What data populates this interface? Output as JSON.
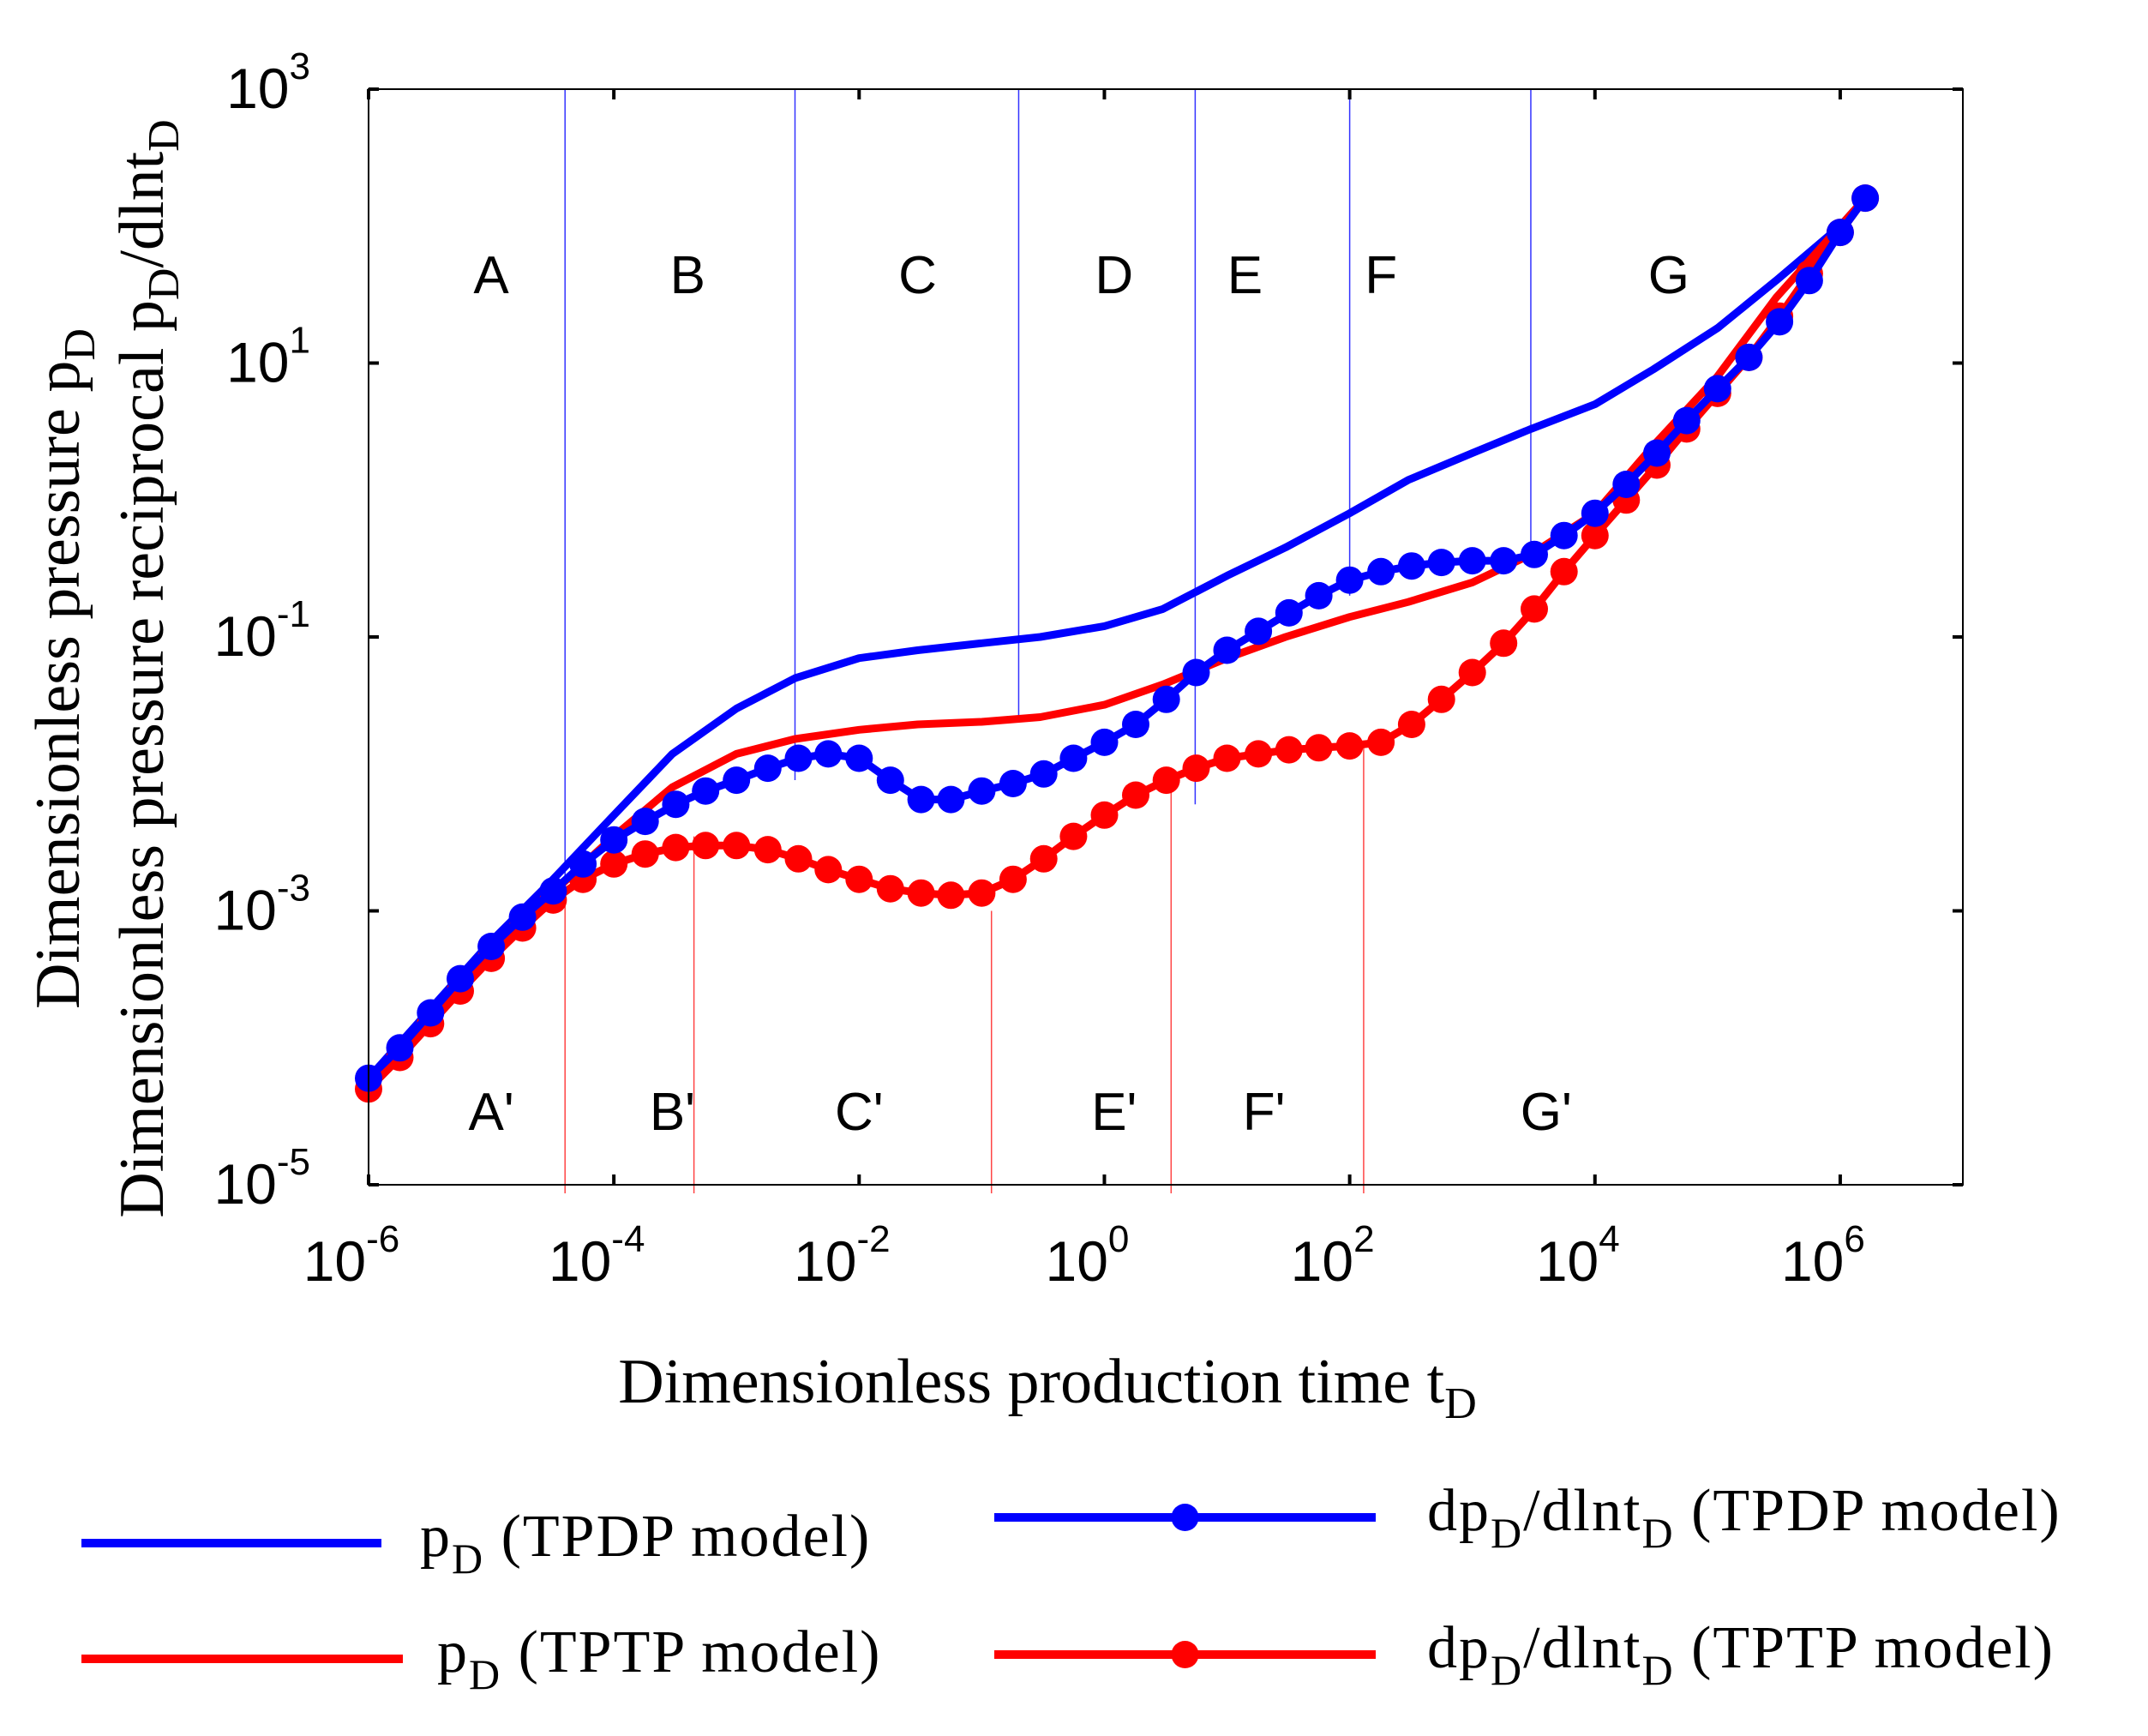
{
  "chart_data": {
    "type": "line",
    "xlabel": "Dimensionless production time t",
    "xlabel_sub": "D",
    "ylabel_line1": "Dimensionless pressure p",
    "ylabel_line1_sub": "D",
    "ylabel_line2": "Dimensionless pressure reciprocal p",
    "ylabel_line2_sub": "D",
    "ylabel_line2_mid": "/dlnt",
    "ylabel_line2_sub2": "D",
    "x_scale": "log",
    "y_scale": "log",
    "xlim": [
      1e-06,
      10000000.0
    ],
    "ylim": [
      1e-05,
      1000.0
    ],
    "x_ticks": [
      {
        "value": 1e-06,
        "base": "10",
        "exp": "-6"
      },
      {
        "value": 0.0001,
        "base": "10",
        "exp": "-4"
      },
      {
        "value": 0.01,
        "base": "10",
        "exp": "-2"
      },
      {
        "value": 1,
        "base": "10",
        "exp": "0"
      },
      {
        "value": 100.0,
        "base": "10",
        "exp": "2"
      },
      {
        "value": 10000.0,
        "base": "10",
        "exp": "4"
      },
      {
        "value": 1000000.0,
        "base": "10",
        "exp": "6"
      }
    ],
    "y_ticks": [
      {
        "value": 1e-05,
        "base": "10",
        "exp": "-5"
      },
      {
        "value": 0.001,
        "base": "10",
        "exp": "-3"
      },
      {
        "value": 0.1,
        "base": "10",
        "exp": "-1"
      },
      {
        "value": 10.0,
        "base": "10",
        "exp": "1"
      },
      {
        "value": 1000.0,
        "base": "10",
        "exp": "3"
      }
    ],
    "grid": false,
    "legend_position": "bottom",
    "top_regions": [
      {
        "label": "A",
        "x": 1e-05
      },
      {
        "label": "B",
        "x": 0.0004
      },
      {
        "label": "C",
        "x": 0.03
      },
      {
        "label": "D",
        "x": 1.2
      },
      {
        "label": "E",
        "x": 14
      },
      {
        "label": "F",
        "x": 180
      },
      {
        "label": "G",
        "x": 40000.0
      }
    ],
    "top_boundaries": [
      4e-05,
      0.003,
      0.2,
      5.5,
      100,
      3000.0
    ],
    "bottom_regions": [
      {
        "label": "A'",
        "x": 1e-05
      },
      {
        "label": "B'",
        "x": 0.0003
      },
      {
        "label": "C'",
        "x": 0.01
      },
      {
        "label": "E'",
        "x": 1.2
      },
      {
        "label": "F'",
        "x": 20
      },
      {
        "label": "G'",
        "x": 4000.0
      }
    ],
    "bottom_boundaries": [
      {
        "x": 4e-05,
        "y": 0.0013
      },
      {
        "x": 0.00045,
        "y": 0.0035
      },
      {
        "x": 0.12,
        "y": 0.001
      },
      {
        "x": 3.5,
        "y": 0.009
      },
      {
        "x": 130,
        "y": 0.017
      }
    ],
    "series": [
      {
        "name": "p",
        "name_sub": "D",
        "name_suffix": "(TPDP model)",
        "color": "#0000ff",
        "style": "line",
        "points": [
          [
            1e-06,
            6e-05
          ],
          [
            3e-06,
            0.00018
          ],
          [
            1e-05,
            0.0006
          ],
          [
            3e-05,
            0.0016
          ],
          [
            0.0001,
            0.005
          ],
          [
            0.0003,
            0.014
          ],
          [
            0.001,
            0.03
          ],
          [
            0.003,
            0.05
          ],
          [
            0.01,
            0.07
          ],
          [
            0.03,
            0.08
          ],
          [
            0.1,
            0.09
          ],
          [
            0.3,
            0.1
          ],
          [
            1,
            0.12
          ],
          [
            3,
            0.16
          ],
          [
            10,
            0.28
          ],
          [
            30,
            0.45
          ],
          [
            100,
            0.8
          ],
          [
            300,
            1.4
          ],
          [
            1000,
            2.2
          ],
          [
            3000,
            3.3
          ],
          [
            10000.0,
            5
          ],
          [
            30000.0,
            9
          ],
          [
            100000.0,
            18
          ],
          [
            300000.0,
            40
          ],
          [
            1000000.0,
            100
          ],
          [
            1600000.0,
            160
          ]
        ]
      },
      {
        "name": "p",
        "name_sub": "D",
        "name_suffix": "(TPTP model)",
        "color": "#ff0000",
        "style": "line",
        "points": [
          [
            1e-06,
            5e-05
          ],
          [
            3e-06,
            0.00015
          ],
          [
            1e-05,
            0.0005
          ],
          [
            3e-05,
            0.0013
          ],
          [
            0.0001,
            0.0035
          ],
          [
            0.0003,
            0.008
          ],
          [
            0.001,
            0.014
          ],
          [
            0.003,
            0.018
          ],
          [
            0.01,
            0.021
          ],
          [
            0.03,
            0.023
          ],
          [
            0.1,
            0.024
          ],
          [
            0.3,
            0.026
          ],
          [
            1,
            0.032
          ],
          [
            3,
            0.045
          ],
          [
            10,
            0.07
          ],
          [
            30,
            0.1
          ],
          [
            100,
            0.14
          ],
          [
            300,
            0.18
          ],
          [
            1000,
            0.25
          ],
          [
            3000,
            0.4
          ],
          [
            10000.0,
            0.8
          ],
          [
            30000.0,
            2.5
          ],
          [
            100000.0,
            8
          ],
          [
            300000.0,
            30
          ],
          [
            1000000.0,
            100
          ],
          [
            1600000.0,
            160
          ]
        ]
      },
      {
        "name": "dp",
        "name_sub": "D",
        "name_mid": "/dlnt",
        "name_sub2": "D",
        "name_suffix": "(TPDP model)",
        "color": "#0000ff",
        "style": "line-marker",
        "points": [
          [
            1e-06,
            6e-05
          ],
          [
            1.8e-06,
            0.0001
          ],
          [
            3.2e-06,
            0.00018
          ],
          [
            5.6e-06,
            0.00032
          ],
          [
            1e-05,
            0.00055
          ],
          [
            1.8e-05,
            0.0009
          ],
          [
            3.2e-05,
            0.0014
          ],
          [
            5.6e-05,
            0.0022
          ],
          [
            0.0001,
            0.0033
          ],
          [
            0.00018,
            0.0045
          ],
          [
            0.00032,
            0.006
          ],
          [
            0.00056,
            0.0075
          ],
          [
            0.001,
            0.009
          ],
          [
            0.0018,
            0.011
          ],
          [
            0.0032,
            0.013
          ],
          [
            0.0056,
            0.014
          ],
          [
            0.01,
            0.013
          ],
          [
            0.018,
            0.009
          ],
          [
            0.032,
            0.0065
          ],
          [
            0.056,
            0.0065
          ],
          [
            0.1,
            0.0075
          ],
          [
            0.18,
            0.0085
          ],
          [
            0.32,
            0.01
          ],
          [
            0.56,
            0.013
          ],
          [
            1,
            0.017
          ],
          [
            1.8,
            0.023
          ],
          [
            3.2,
            0.035
          ],
          [
            5.6,
            0.055
          ],
          [
            10,
            0.08
          ],
          [
            18,
            0.11
          ],
          [
            32,
            0.15
          ],
          [
            56,
            0.2
          ],
          [
            100,
            0.26
          ],
          [
            180,
            0.3
          ],
          [
            320,
            0.33
          ],
          [
            560,
            0.35
          ],
          [
            1000,
            0.36
          ],
          [
            1800,
            0.36
          ],
          [
            3200,
            0.4
          ],
          [
            5600,
            0.55
          ],
          [
            10000.0,
            0.8
          ],
          [
            18000.0,
            1.3
          ],
          [
            32000.0,
            2.2
          ],
          [
            56000.0,
            3.8
          ],
          [
            100000.0,
            6.5
          ],
          [
            180000.0,
            11
          ],
          [
            320000.0,
            20
          ],
          [
            560000.0,
            40
          ],
          [
            1000000.0,
            90
          ],
          [
            1600000.0,
            160
          ]
        ]
      },
      {
        "name": "dp",
        "name_sub": "D",
        "name_mid": "/dlnt",
        "name_sub2": "D",
        "name_suffix": "(TPTP model)",
        "color": "#ff0000",
        "style": "line-marker",
        "points": [
          [
            1e-06,
            5e-05
          ],
          [
            1.8e-06,
            8.5e-05
          ],
          [
            3.2e-06,
            0.00015
          ],
          [
            5.6e-06,
            0.00026
          ],
          [
            1e-05,
            0.00045
          ],
          [
            1.8e-05,
            0.00075
          ],
          [
            3.2e-05,
            0.0012
          ],
          [
            5.6e-05,
            0.0017
          ],
          [
            0.0001,
            0.0022
          ],
          [
            0.00018,
            0.0026
          ],
          [
            0.00032,
            0.0029
          ],
          [
            0.00056,
            0.003
          ],
          [
            0.001,
            0.003
          ],
          [
            0.0018,
            0.0028
          ],
          [
            0.0032,
            0.0024
          ],
          [
            0.0056,
            0.002
          ],
          [
            0.01,
            0.0017
          ],
          [
            0.018,
            0.00145
          ],
          [
            0.032,
            0.00135
          ],
          [
            0.056,
            0.0013
          ],
          [
            0.1,
            0.00135
          ],
          [
            0.18,
            0.0017
          ],
          [
            0.32,
            0.0024
          ],
          [
            0.56,
            0.0035
          ],
          [
            1,
            0.005
          ],
          [
            1.8,
            0.007
          ],
          [
            3.2,
            0.009
          ],
          [
            5.6,
            0.011
          ],
          [
            10,
            0.013
          ],
          [
            18,
            0.014
          ],
          [
            32,
            0.015
          ],
          [
            56,
            0.0155
          ],
          [
            100,
            0.016
          ],
          [
            180,
            0.017
          ],
          [
            320,
            0.023
          ],
          [
            560,
            0.035
          ],
          [
            1000,
            0.055
          ],
          [
            1800,
            0.09
          ],
          [
            3200,
            0.16
          ],
          [
            5600,
            0.3
          ],
          [
            10000.0,
            0.55
          ],
          [
            18000.0,
            1
          ],
          [
            32000.0,
            1.8
          ],
          [
            56000.0,
            3.3
          ],
          [
            100000.0,
            6
          ],
          [
            180000.0,
            11
          ],
          [
            320000.0,
            22
          ],
          [
            560000.0,
            45
          ],
          [
            1000000.0,
            90
          ],
          [
            1600000.0,
            160
          ]
        ]
      }
    ],
    "legend": [
      {
        "series_index": 0,
        "label": "p",
        "sub": "D",
        "suffix": " (TPDP model)"
      },
      {
        "series_index": 1,
        "label": "p",
        "sub": "D",
        "suffix": " (TPTP model)"
      },
      {
        "series_index": 2,
        "label": "dp",
        "sub": "D",
        "mid": "/dlnt",
        "sub2": "D",
        "suffix": " (TPDP model)"
      },
      {
        "series_index": 3,
        "label": "dp",
        "sub": "D",
        "mid": "/dlnt",
        "sub2": "D",
        "suffix": " (TPTP model)"
      }
    ]
  }
}
